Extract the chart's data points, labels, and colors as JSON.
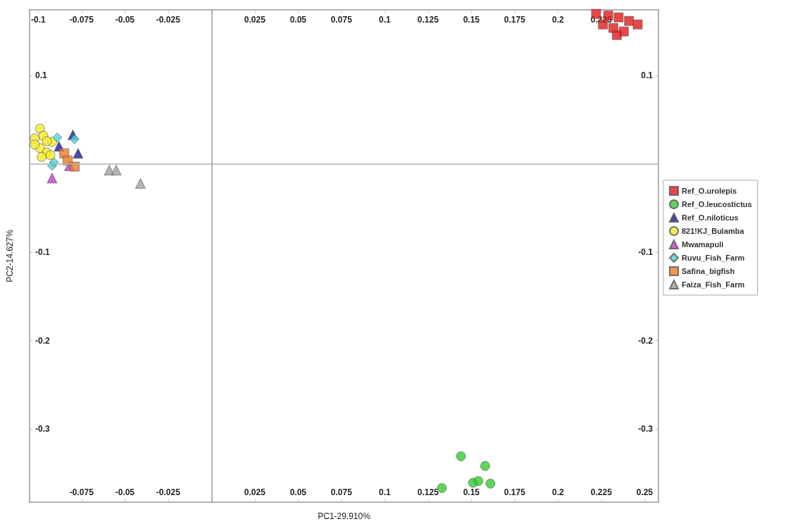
{
  "chart_data": {
    "type": "scatter",
    "xlabel": "PC1-29.910%",
    "ylabel": "PC2-14.627%",
    "xlim": [
      -0.105,
      0.258
    ],
    "ylim": [
      -0.383,
      0.1745
    ],
    "xticks": [
      -0.075,
      -0.05,
      -0.025,
      0.025,
      0.05,
      0.075,
      0.1,
      0.125,
      0.15,
      0.175,
      0.2,
      0.225,
      0.25
    ],
    "x2lim": [
      -0.105,
      0.258
    ],
    "x2ticks": [
      -0.1,
      -0.075,
      -0.05,
      -0.025,
      0.025,
      0.05,
      0.075,
      0.1,
      0.125,
      0.15,
      0.175,
      0.2,
      0.225
    ],
    "yticks": [
      -0.3,
      -0.2,
      -0.1,
      0.1
    ],
    "y2lim": [
      -0.383,
      0.1745
    ],
    "y2ticks": [
      -0.3,
      -0.2,
      -0.1,
      0.1
    ],
    "legend": "right",
    "ref_lines": [
      {
        "axis": "x",
        "value": 0,
        "color": "#999999"
      },
      {
        "axis": "y",
        "value": 0,
        "color": "#b0b0b0"
      }
    ],
    "series": [
      {
        "name": "Ref_O.urolepis",
        "color": "#e31a1c",
        "marker": "square",
        "x": [
          0.222,
          0.229,
          0.235,
          0.241,
          0.246,
          0.226,
          0.232,
          0.238,
          0.234
        ],
        "values": [
          0.17,
          0.168,
          0.166,
          0.162,
          0.158,
          0.158,
          0.154,
          0.15,
          0.146
        ]
      },
      {
        "name": "Ref_O.leucostictus",
        "color": "#33cc33",
        "marker": "circle",
        "x": [
          0.144,
          0.158,
          0.133,
          0.151,
          0.154,
          0.161
        ],
        "values": [
          -0.331,
          -0.342,
          -0.367,
          -0.361,
          -0.359,
          -0.362
        ]
      },
      {
        "name": "Ref_O.niloticus",
        "color": "#1a1a99",
        "marker": "triangle",
        "x": [
          -0.08,
          -0.077,
          -0.088
        ],
        "values": [
          0.033,
          0.012,
          0.02
        ]
      },
      {
        "name": "821!KJ_Bulamba",
        "color": "#f5eb2a",
        "marker": "circle",
        "x": [
          -0.099,
          -0.102,
          -0.097,
          -0.092,
          -0.099,
          -0.102,
          -0.095,
          -0.098,
          -0.093,
          -0.095
        ],
        "values": [
          0.04,
          0.029,
          0.032,
          0.025,
          0.018,
          0.022,
          0.013,
          0.008,
          0.01,
          0.026
        ]
      },
      {
        "name": "Mwamapuli",
        "color": "#c03cc0",
        "marker": "triangle",
        "x": [
          -0.092,
          -0.082
        ],
        "values": [
          -0.016,
          -0.002
        ]
      },
      {
        "name": "Ruvu_Fish_Farm",
        "color": "#4dd2dc",
        "marker": "diamond",
        "x": [
          -0.079,
          -0.092,
          -0.089,
          -0.091
        ],
        "values": [
          0.028,
          -0.002,
          0.03,
          0.002
        ]
      },
      {
        "name": "Safina_bigfish",
        "color": "#ec7a2c",
        "marker": "square",
        "x": [
          -0.085,
          -0.079,
          -0.083
        ],
        "values": [
          0.012,
          -0.003,
          0.004
        ]
      },
      {
        "name": "Faiza_Fish_Farm",
        "color": "#a0a0a0",
        "marker": "triangle",
        "x": [
          -0.059,
          -0.055,
          -0.041
        ],
        "values": [
          -0.007,
          -0.007,
          -0.022
        ]
      }
    ]
  }
}
